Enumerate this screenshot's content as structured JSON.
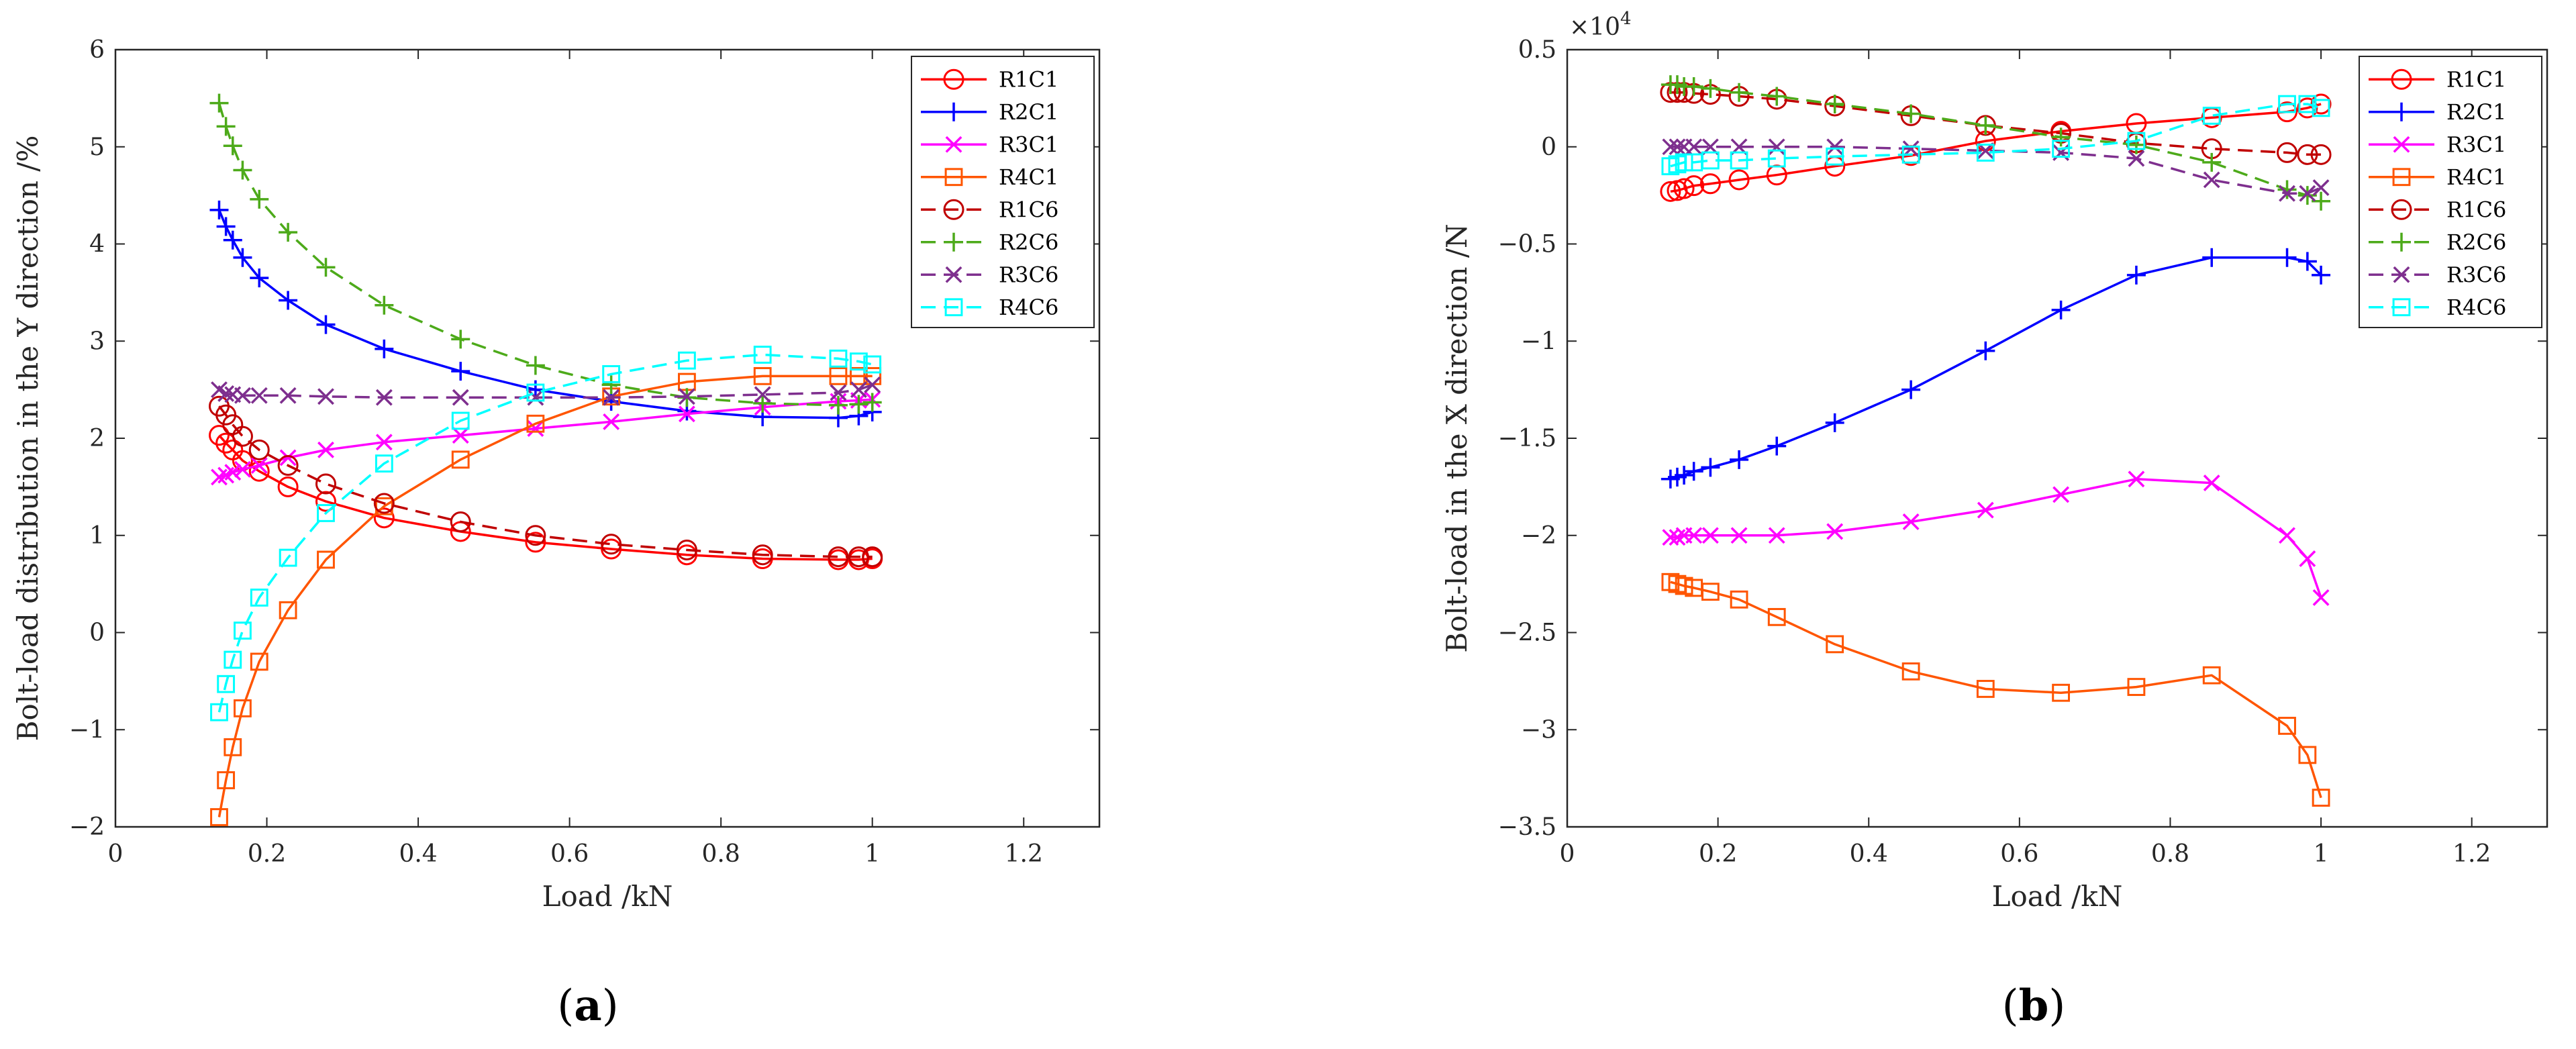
{
  "chart_data": [
    {
      "type": "line",
      "panel_label": "(a)",
      "panel_letter": "a",
      "xlabel": "Load /kN",
      "ylabel": "Bolt-load distribution in the Y direction /%",
      "xlim": [
        0,
        1.3
      ],
      "ylim": [
        -2,
        6
      ],
      "xticks": [
        0,
        0.2,
        0.4,
        0.6,
        0.8,
        1,
        1.2
      ],
      "xtick_labels": [
        "0",
        "0.2",
        "0.4",
        "0.6",
        "0.8",
        "1",
        "1.2"
      ],
      "yticks": [
        -2,
        -1,
        0,
        1,
        2,
        3,
        4,
        5,
        6
      ],
      "ytick_labels": [
        "−2",
        "−1",
        "0",
        "1",
        "2",
        "3",
        "4",
        "5",
        "6"
      ],
      "scale_label": "",
      "legend_position": "top-right",
      "x": [
        0.137,
        0.146,
        0.155,
        0.168,
        0.19,
        0.228,
        0.278,
        0.355,
        0.456,
        0.555,
        0.655,
        0.755,
        0.855,
        0.955,
        0.982,
        1.0
      ],
      "series": [
        {
          "name": "R1C1",
          "color": "#ff0000",
          "dash": "solid",
          "marker": "circle",
          "values": [
            2.03,
            1.95,
            1.88,
            1.77,
            1.66,
            1.5,
            1.35,
            1.18,
            1.04,
            0.93,
            0.86,
            0.8,
            0.76,
            0.75,
            0.75,
            0.76
          ]
        },
        {
          "name": "R2C1",
          "color": "#0000ff",
          "dash": "solid",
          "marker": "plus",
          "values": [
            4.35,
            4.18,
            4.04,
            3.86,
            3.65,
            3.42,
            3.17,
            2.92,
            2.69,
            2.5,
            2.38,
            2.28,
            2.22,
            2.21,
            2.23,
            2.27
          ]
        },
        {
          "name": "R3C1",
          "color": "#ff00ff",
          "dash": "solid",
          "marker": "x",
          "values": [
            1.6,
            1.62,
            1.65,
            1.68,
            1.72,
            1.8,
            1.88,
            1.96,
            2.03,
            2.1,
            2.17,
            2.25,
            2.32,
            2.38,
            2.39,
            2.4
          ]
        },
        {
          "name": "R4C1",
          "color": "#ff5500",
          "dash": "solid",
          "marker": "square",
          "values": [
            -1.9,
            -1.52,
            -1.18,
            -0.78,
            -0.3,
            0.23,
            0.75,
            1.3,
            1.78,
            2.15,
            2.43,
            2.58,
            2.64,
            2.64,
            2.64,
            2.64
          ]
        },
        {
          "name": "R1C6",
          "color": "#c00000",
          "dash": "dashed",
          "marker": "circle",
          "values": [
            2.33,
            2.24,
            2.14,
            2.02,
            1.88,
            1.72,
            1.53,
            1.33,
            1.14,
            1.0,
            0.91,
            0.85,
            0.8,
            0.78,
            0.78,
            0.78
          ]
        },
        {
          "name": "R2C6",
          "color": "#4daa1a",
          "dash": "dashed",
          "marker": "plus",
          "values": [
            5.45,
            5.21,
            5.01,
            4.76,
            4.46,
            4.12,
            3.76,
            3.37,
            3.02,
            2.75,
            2.55,
            2.42,
            2.36,
            2.34,
            2.35,
            2.37
          ]
        },
        {
          "name": "R3C6",
          "color": "#7e2f8e",
          "dash": "dashed",
          "marker": "x",
          "values": [
            2.5,
            2.46,
            2.45,
            2.44,
            2.44,
            2.44,
            2.43,
            2.42,
            2.42,
            2.42,
            2.42,
            2.43,
            2.45,
            2.47,
            2.5,
            2.55
          ]
        },
        {
          "name": "R4C6",
          "color": "#00ffff",
          "dash": "dashed",
          "marker": "square",
          "values": [
            -0.82,
            -0.53,
            -0.28,
            0.02,
            0.36,
            0.77,
            1.23,
            1.74,
            2.18,
            2.47,
            2.66,
            2.8,
            2.86,
            2.82,
            2.79,
            2.76
          ]
        }
      ]
    },
    {
      "type": "line",
      "panel_label": "(b)",
      "panel_letter": "b",
      "xlabel": "Load /kN",
      "ylabel": "Bolt-load in the X direction /N",
      "xlim": [
        0,
        1.3
      ],
      "ylim": [
        -3.5,
        0.5
      ],
      "xticks": [
        0,
        0.2,
        0.4,
        0.6,
        0.8,
        1,
        1.2
      ],
      "xtick_labels": [
        "0",
        "0.2",
        "0.4",
        "0.6",
        "0.8",
        "1",
        "1.2"
      ],
      "yticks": [
        -3.5,
        -3,
        -2.5,
        -2,
        -1.5,
        -1,
        -0.5,
        0,
        0.5
      ],
      "ytick_labels": [
        "−3.5",
        "−3",
        "−2.5",
        "−2",
        "−1.5",
        "−1",
        "−0.5",
        "0",
        "0.5"
      ],
      "scale_label": "×10",
      "scale_exponent": "4",
      "legend_position": "top-right",
      "x": [
        0.137,
        0.146,
        0.155,
        0.168,
        0.19,
        0.228,
        0.278,
        0.355,
        0.456,
        0.555,
        0.655,
        0.755,
        0.855,
        0.955,
        0.982,
        1.0
      ],
      "series": [
        {
          "name": "R1C1",
          "color": "#ff0000",
          "dash": "solid",
          "marker": "circle",
          "values": [
            -0.23,
            -0.225,
            -0.215,
            -0.2,
            -0.19,
            -0.17,
            -0.145,
            -0.1,
            -0.045,
            0.03,
            0.08,
            0.12,
            0.15,
            0.18,
            0.2,
            0.22
          ]
        },
        {
          "name": "R2C1",
          "color": "#0000ff",
          "dash": "solid",
          "marker": "plus",
          "values": [
            -1.71,
            -1.7,
            -1.69,
            -1.67,
            -1.65,
            -1.61,
            -1.54,
            -1.42,
            -1.25,
            -1.05,
            -0.84,
            -0.66,
            -0.57,
            -0.57,
            -0.59,
            -0.66
          ]
        },
        {
          "name": "R3C1",
          "color": "#ff00ff",
          "dash": "solid",
          "marker": "x",
          "values": [
            -2.01,
            -2.01,
            -2.0,
            -2.0,
            -2.0,
            -2.0,
            -2.0,
            -1.98,
            -1.93,
            -1.87,
            -1.79,
            -1.71,
            -1.73,
            -2.0,
            -2.12,
            -2.32
          ]
        },
        {
          "name": "R4C1",
          "color": "#ff5500",
          "dash": "solid",
          "marker": "square",
          "values": [
            -2.24,
            -2.25,
            -2.26,
            -2.27,
            -2.29,
            -2.33,
            -2.42,
            -2.56,
            -2.7,
            -2.79,
            -2.81,
            -2.78,
            -2.72,
            -2.98,
            -3.13,
            -3.35
          ]
        },
        {
          "name": "R1C6",
          "color": "#c00000",
          "dash": "dashed",
          "marker": "circle",
          "values": [
            0.28,
            0.28,
            0.28,
            0.275,
            0.27,
            0.26,
            0.245,
            0.21,
            0.16,
            0.11,
            0.07,
            0.02,
            -0.01,
            -0.03,
            -0.04,
            -0.04
          ]
        },
        {
          "name": "R2C6",
          "color": "#4daa1a",
          "dash": "dashed",
          "marker": "plus",
          "values": [
            0.32,
            0.32,
            0.31,
            0.31,
            0.3,
            0.28,
            0.26,
            0.22,
            0.17,
            0.11,
            0.05,
            0.01,
            -0.08,
            -0.22,
            -0.25,
            -0.28
          ]
        },
        {
          "name": "R3C6",
          "color": "#7e2f8e",
          "dash": "dashed",
          "marker": "x",
          "values": [
            0.0,
            0.0,
            0.0,
            0.0,
            0.0,
            0.0,
            0.0,
            0.0,
            -0.01,
            -0.02,
            -0.03,
            -0.06,
            -0.17,
            -0.24,
            -0.24,
            -0.21
          ]
        },
        {
          "name": "R4C6",
          "color": "#00ffff",
          "dash": "dashed",
          "marker": "square",
          "values": [
            -0.1,
            -0.09,
            -0.08,
            -0.08,
            -0.07,
            -0.07,
            -0.06,
            -0.05,
            -0.04,
            -0.03,
            -0.01,
            0.03,
            0.16,
            0.22,
            0.22,
            0.2
          ]
        }
      ]
    }
  ]
}
